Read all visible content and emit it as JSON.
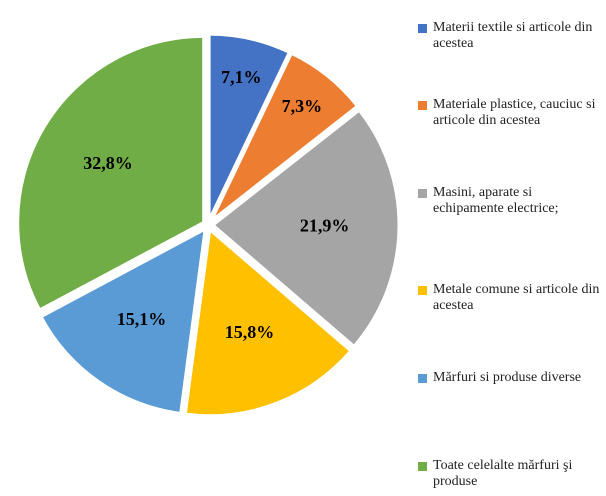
{
  "chart_data": {
    "type": "pie",
    "categories": [
      "Materii textile si articole din acestea",
      "Materiale plastice, cauciuc si articole din acestea",
      "Masini, aparate si echipamente electrice;",
      "Metale comune si articole din acestea",
      "Mărfuri si produse diverse",
      "Toate celelalte mărfuri şi produse"
    ],
    "values": [
      7.1,
      7.3,
      21.9,
      15.8,
      15.1,
      32.8
    ],
    "value_labels": [
      "7,1%",
      "7,3%",
      "21,9%",
      "15,8%",
      "15,1%",
      "32,8%"
    ],
    "colors": [
      "#4472c4",
      "#ed7d31",
      "#a5a5a5",
      "#ffc000",
      "#5b9bd5",
      "#70ad47"
    ],
    "legend": "right"
  }
}
